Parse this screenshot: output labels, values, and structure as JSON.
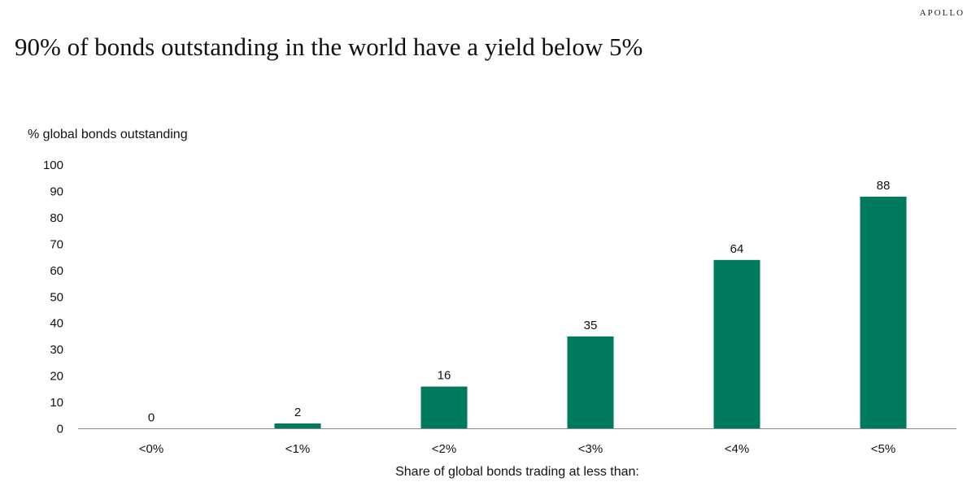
{
  "brand": "APOLLO",
  "title": "90% of bonds outstanding in the world have a yield below 5%",
  "chart_data": {
    "type": "bar",
    "categories": [
      "<0%",
      "<1%",
      "<2%",
      "<3%",
      "<4%",
      "<5%"
    ],
    "values": [
      0,
      2,
      16,
      35,
      64,
      88
    ],
    "data_labels": [
      "0",
      "2",
      "16",
      "35",
      "64",
      "88"
    ],
    "ylabel": "% global bonds outstanding",
    "xlabel": "Share of global bonds trading at less than:",
    "ylim": [
      0,
      100
    ],
    "yticks": [
      0,
      10,
      20,
      30,
      40,
      50,
      60,
      70,
      80,
      90,
      100
    ],
    "grid": false,
    "bar_color": "#007a5e"
  }
}
